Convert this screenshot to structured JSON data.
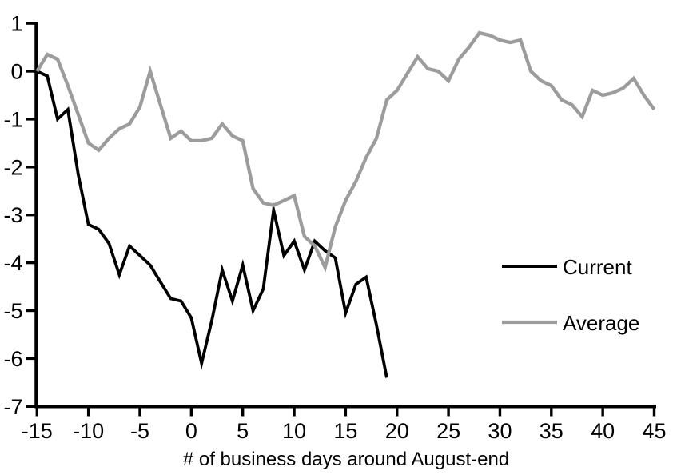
{
  "chart_data": {
    "type": "line",
    "title": "",
    "xlabel": "# of business days around August-end",
    "ylabel": "",
    "xlim": [
      -15,
      45
    ],
    "ylim": [
      -7,
      1
    ],
    "x_ticks": [
      -15,
      -10,
      -5,
      0,
      5,
      10,
      15,
      20,
      25,
      30,
      35,
      40,
      45
    ],
    "y_ticks": [
      1,
      0,
      -1,
      -2,
      -3,
      -4,
      -5,
      -6,
      -7
    ],
    "grid": false,
    "legend_position": "right-middle",
    "axis_color": "#000000",
    "series": [
      {
        "name": "Current",
        "color": "#000000",
        "stroke_width": 3.8,
        "x": [
          -15,
          -14,
          -13,
          -12,
          -11,
          -10,
          -9,
          -8,
          -7,
          -6,
          -5,
          -4,
          -3,
          -2,
          -1,
          0,
          1,
          2,
          3,
          4,
          5,
          6,
          7,
          8,
          9,
          10,
          11,
          12,
          13,
          14,
          15,
          16,
          17,
          18,
          19
        ],
        "values": [
          0,
          -0.1,
          -1.0,
          -0.8,
          -2.15,
          -3.2,
          -3.3,
          -3.6,
          -4.25,
          -3.65,
          -3.85,
          -4.05,
          -4.4,
          -4.75,
          -4.8,
          -5.15,
          -6.1,
          -5.2,
          -4.15,
          -4.8,
          -4.05,
          -5.0,
          -4.55,
          -2.9,
          -3.85,
          -3.55,
          -4.15,
          -3.55,
          -3.75,
          -3.9,
          -5.05,
          -4.45,
          -4.3,
          -5.3,
          -6.4
        ]
      },
      {
        "name": "Average",
        "color": "#9C9C9C",
        "stroke_width": 4.3,
        "x": [
          -15,
          -14,
          -13,
          -12,
          -11,
          -10,
          -9,
          -8,
          -7,
          -6,
          -5,
          -4,
          -3,
          -2,
          -1,
          0,
          1,
          2,
          3,
          4,
          5,
          6,
          7,
          8,
          9,
          10,
          11,
          12,
          13,
          14,
          15,
          16,
          17,
          18,
          19,
          20,
          21,
          22,
          23,
          24,
          25,
          26,
          27,
          28,
          29,
          30,
          31,
          32,
          33,
          34,
          35,
          36,
          37,
          38,
          39,
          40,
          41,
          42,
          43,
          44,
          45
        ],
        "values": [
          0,
          0.35,
          0.25,
          -0.3,
          -0.9,
          -1.5,
          -1.65,
          -1.4,
          -1.2,
          -1.1,
          -0.75,
          0,
          -0.7,
          -1.4,
          -1.25,
          -1.45,
          -1.45,
          -1.4,
          -1.1,
          -1.35,
          -1.45,
          -2.45,
          -2.75,
          -2.8,
          -2.7,
          -2.6,
          -3.45,
          -3.65,
          -4.1,
          -3.25,
          -2.7,
          -2.3,
          -1.8,
          -1.4,
          -0.6,
          -0.4,
          -0.05,
          0.3,
          0.05,
          0,
          -0.2,
          0.25,
          0.5,
          0.8,
          0.75,
          0.65,
          0.6,
          0.65,
          0,
          -0.2,
          -0.3,
          -0.6,
          -0.7,
          -0.95,
          -0.4,
          -0.5,
          -0.45,
          -0.35,
          -0.15,
          -0.5,
          -0.8
        ]
      }
    ]
  }
}
